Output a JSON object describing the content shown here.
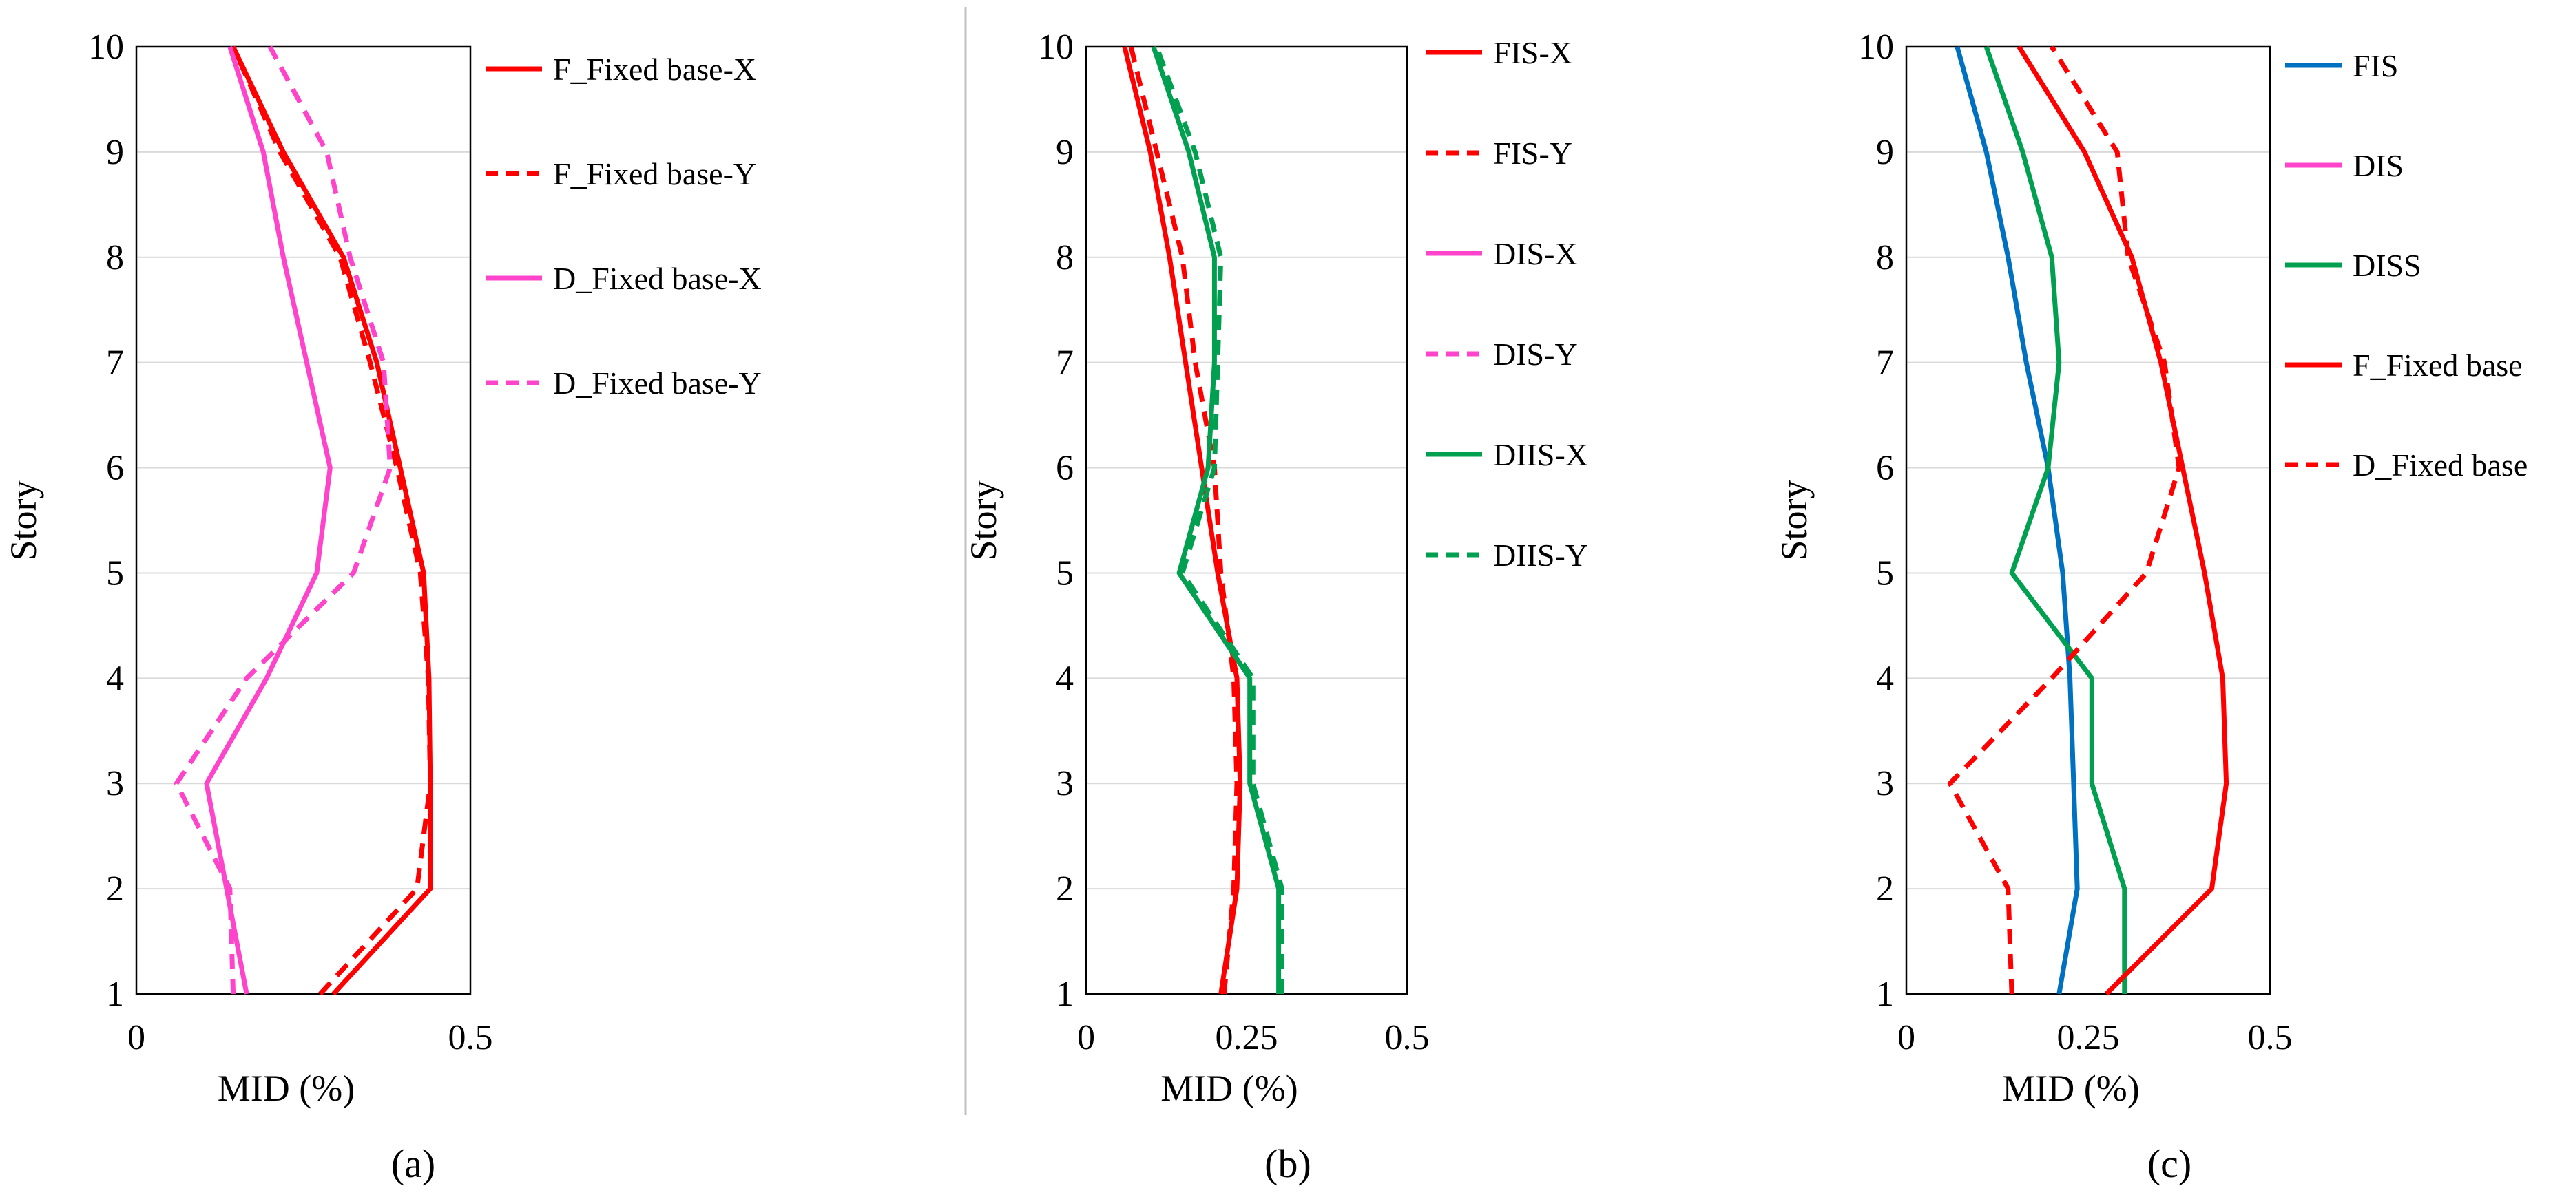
{
  "chart_data": [
    {
      "type": "line",
      "panel_label": "(a)",
      "orientation": "profile",
      "xlabel": "MID (%)",
      "ylabel": "Story",
      "xlim": [
        0,
        0.5
      ],
      "ylim": [
        1,
        10
      ],
      "x_ticks": [
        0,
        0.5
      ],
      "x_tick_labels": [
        "0",
        "0.5"
      ],
      "y_ticks": [
        1,
        2,
        3,
        4,
        5,
        6,
        7,
        8,
        9,
        10
      ],
      "y_tick_labels": [
        "1",
        "2",
        "3",
        "4",
        "5",
        "6",
        "7",
        "8",
        "9",
        "10"
      ],
      "grid": "horizontal",
      "legend_position": "right",
      "series": [
        {
          "name": "F_Fixed base-X",
          "color": "#ff0000",
          "dash": "solid",
          "x": [
            0.295,
            0.44,
            0.44,
            0.438,
            0.43,
            0.395,
            0.36,
            0.31,
            0.22,
            0.145
          ],
          "y": [
            1,
            2,
            3,
            4,
            5,
            6,
            7,
            8,
            9,
            10
          ]
        },
        {
          "name": "F_Fixed base-Y",
          "color": "#ff0000",
          "dash": "dashed",
          "x": [
            0.275,
            0.42,
            0.44,
            0.437,
            0.425,
            0.39,
            0.35,
            0.305,
            0.215,
            0.145
          ],
          "y": [
            1,
            2,
            3,
            4,
            5,
            6,
            7,
            8,
            9,
            10
          ]
        },
        {
          "name": "D_Fixed base-X",
          "color": "#ff44cc",
          "dash": "solid",
          "x": [
            0.165,
            0.135,
            0.105,
            0.195,
            0.27,
            0.29,
            0.255,
            0.22,
            0.19,
            0.14
          ],
          "y": [
            1,
            2,
            3,
            4,
            5,
            6,
            7,
            8,
            9,
            10
          ]
        },
        {
          "name": "D_Fixed base-Y",
          "color": "#ff44cc",
          "dash": "dashed",
          "x": [
            0.145,
            0.14,
            0.06,
            0.165,
            0.325,
            0.38,
            0.37,
            0.32,
            0.285,
            0.2
          ],
          "y": [
            1,
            2,
            3,
            4,
            5,
            6,
            7,
            8,
            9,
            10
          ]
        }
      ]
    },
    {
      "type": "line",
      "panel_label": "(b)",
      "orientation": "profile",
      "xlabel": "MID (%)",
      "ylabel": "Story",
      "xlim": [
        0,
        0.5
      ],
      "ylim": [
        1,
        10
      ],
      "x_ticks": [
        0,
        0.25,
        0.5
      ],
      "x_tick_labels": [
        "0",
        "0.25",
        "0.5"
      ],
      "y_ticks": [
        1,
        2,
        3,
        4,
        5,
        6,
        7,
        8,
        9,
        10
      ],
      "y_tick_labels": [
        "1",
        "2",
        "3",
        "4",
        "5",
        "6",
        "7",
        "8",
        "9",
        "10"
      ],
      "grid": "horizontal",
      "legend_position": "right",
      "series": [
        {
          "name": "FIS-X",
          "color": "#ff0000",
          "dash": "solid",
          "x": [
            0.21,
            0.235,
            0.24,
            0.235,
            0.205,
            0.18,
            0.155,
            0.13,
            0.1,
            0.06
          ],
          "y": [
            1,
            2,
            3,
            4,
            5,
            6,
            7,
            8,
            9,
            10
          ]
        },
        {
          "name": "FIS-Y",
          "color": "#ff0000",
          "dash": "dashed",
          "x": [
            0.215,
            0.23,
            0.235,
            0.23,
            0.21,
            0.2,
            0.17,
            0.15,
            0.11,
            0.07
          ],
          "y": [
            1,
            2,
            3,
            4,
            5,
            6,
            7,
            8,
            9,
            10
          ]
        },
        {
          "name": "DIS-X",
          "color": "#ff44cc",
          "dash": "solid",
          "x": [],
          "y": []
        },
        {
          "name": "DIS-Y",
          "color": "#ff44cc",
          "dash": "dashed",
          "x": [],
          "y": []
        },
        {
          "name": "DIIS-X",
          "color": "#00a050",
          "dash": "solid",
          "x": [
            0.3,
            0.3,
            0.255,
            0.255,
            0.145,
            0.19,
            0.2,
            0.2,
            0.16,
            0.105
          ],
          "y": [
            1,
            2,
            3,
            4,
            5,
            6,
            7,
            8,
            9,
            10
          ]
        },
        {
          "name": "DIIS-Y",
          "color": "#00a050",
          "dash": "dashed",
          "x": [
            0.305,
            0.305,
            0.26,
            0.26,
            0.15,
            0.2,
            0.205,
            0.21,
            0.17,
            0.11
          ],
          "y": [
            1,
            2,
            3,
            4,
            5,
            6,
            7,
            8,
            9,
            10
          ]
        }
      ]
    },
    {
      "type": "line",
      "panel_label": "(c)",
      "orientation": "profile",
      "xlabel": "MID (%)",
      "ylabel": "Story",
      "xlim": [
        0,
        0.5
      ],
      "ylim": [
        1,
        10
      ],
      "x_ticks": [
        0,
        0.25,
        0.5
      ],
      "x_tick_labels": [
        "0",
        "0.25",
        "0.5"
      ],
      "y_ticks": [
        1,
        2,
        3,
        4,
        5,
        6,
        7,
        8,
        9,
        10
      ],
      "y_tick_labels": [
        "1",
        "2",
        "3",
        "4",
        "5",
        "6",
        "7",
        "8",
        "9",
        "10"
      ],
      "grid": "horizontal",
      "legend_position": "right",
      "series": [
        {
          "name": "FIS",
          "color": "#0070c0",
          "dash": "solid",
          "x": [
            0.21,
            0.235,
            0.23,
            0.225,
            0.215,
            0.195,
            0.165,
            0.14,
            0.11,
            0.07
          ],
          "y": [
            1,
            2,
            3,
            4,
            5,
            6,
            7,
            8,
            9,
            10
          ]
        },
        {
          "name": "DIS",
          "color": "#ff44cc",
          "dash": "solid",
          "x": [],
          "y": []
        },
        {
          "name": "DISS",
          "color": "#00a050",
          "dash": "solid",
          "x": [
            0.3,
            0.3,
            0.255,
            0.255,
            0.145,
            0.195,
            0.21,
            0.2,
            0.16,
            0.11
          ],
          "y": [
            1,
            2,
            3,
            4,
            5,
            6,
            7,
            8,
            9,
            10
          ]
        },
        {
          "name": "F_Fixed base",
          "color": "#ff0000",
          "dash": "solid",
          "x": [
            0.275,
            0.42,
            0.44,
            0.435,
            0.41,
            0.38,
            0.35,
            0.31,
            0.245,
            0.155
          ],
          "y": [
            1,
            2,
            3,
            4,
            5,
            6,
            7,
            8,
            9,
            10
          ]
        },
        {
          "name": "D_Fixed base",
          "color": "#ff0000",
          "dash": "dashed",
          "x": [
            0.145,
            0.14,
            0.06,
            0.2,
            0.33,
            0.375,
            0.355,
            0.305,
            0.29,
            0.2
          ],
          "y": [
            1,
            2,
            3,
            4,
            5,
            6,
            7,
            8,
            9,
            10
          ]
        }
      ]
    }
  ]
}
